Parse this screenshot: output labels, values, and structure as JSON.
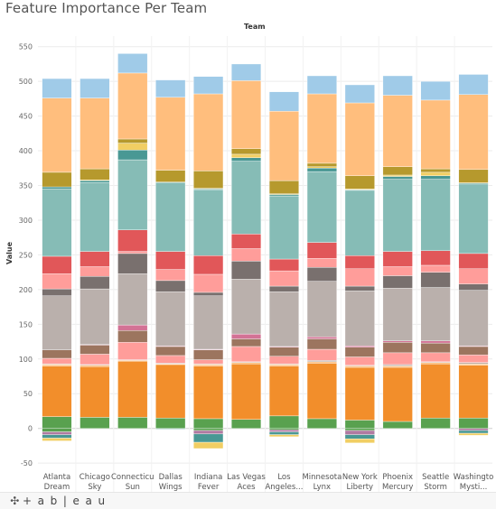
{
  "title": "Feature Importance Per Team",
  "column_header": "Team",
  "footer": {
    "logo_text": "+ a b | e a u",
    "logo_mark": "✣"
  },
  "chart_data": {
    "type": "bar",
    "stacked": true,
    "title": "Feature Importance Per Team",
    "xlabel": "",
    "column_header": "Team",
    "ylabel": "Value",
    "ylim": [
      -55,
      560
    ],
    "yticks": [
      -50,
      0,
      50,
      100,
      150,
      200,
      250,
      300,
      350,
      400,
      450,
      500,
      550
    ],
    "grid": true,
    "categories": [
      [
        "Atlanta",
        "Dream"
      ],
      [
        "Chicago",
        "Sky"
      ],
      [
        "Connecticu",
        "Sun"
      ],
      [
        "Dallas",
        "Wings"
      ],
      [
        "Indiana",
        "Fever"
      ],
      [
        "Las Vegas",
        "Aces"
      ],
      [
        "Los",
        "Angeles..."
      ],
      [
        "Minnesota",
        "Lynx"
      ],
      [
        "New York",
        "Liberty"
      ],
      [
        "Phoenix",
        "Mercury"
      ],
      [
        "Seattle",
        "Storm"
      ],
      [
        "Washingto",
        "Mysti..."
      ]
    ],
    "series": [
      {
        "color": "#59a14f",
        "values": [
          17,
          16,
          16,
          15,
          14,
          13,
          18,
          14,
          12,
          10,
          15,
          15
        ]
      },
      {
        "color": "#f28e2b",
        "values": [
          73,
          73,
          81,
          77,
          76,
          80,
          72,
          80,
          76,
          78,
          78,
          76
        ]
      },
      {
        "color": "#ffbe7d",
        "values": [
          2,
          2,
          1,
          1,
          2,
          2,
          2,
          2,
          2,
          2,
          2,
          2
        ]
      },
      {
        "color": "#bab0ac",
        "values": [
          1,
          1,
          1,
          1,
          1,
          1,
          1,
          2,
          1,
          2,
          1,
          2
        ]
      },
      {
        "color": "#ff9d9a",
        "values": [
          8,
          15,
          25,
          11,
          6,
          22,
          11,
          16,
          12,
          17,
          13,
          11
        ]
      },
      {
        "color": "#9c755f",
        "values": [
          12,
          13,
          17,
          13,
          14,
          11,
          13,
          15,
          14,
          15,
          14,
          12
        ]
      },
      {
        "color": "#d37295",
        "values": [
          0,
          1,
          8,
          1,
          1,
          7,
          1,
          3,
          2,
          2,
          3,
          1
        ]
      },
      {
        "color": "#bab0ac",
        "values": [
          78,
          80,
          74,
          78,
          77,
          79,
          79,
          80,
          79,
          76,
          77,
          80
        ]
      },
      {
        "color": "#79706e",
        "values": [
          10,
          18,
          29,
          16,
          5,
          26,
          8,
          20,
          7,
          18,
          22,
          9
        ]
      },
      {
        "color": "#ff9d9a",
        "values": [
          22,
          14,
          3,
          16,
          26,
          18,
          22,
          13,
          25,
          13,
          10,
          22
        ]
      },
      {
        "color": "#e15759",
        "values": [
          25,
          22,
          31,
          26,
          27,
          21,
          17,
          23,
          19,
          22,
          21,
          22
        ]
      },
      {
        "color": "#86bcb6",
        "values": [
          97,
          99,
          101,
          99,
          95,
          105,
          91,
          102,
          94,
          104,
          103,
          99
        ]
      },
      {
        "color": "#499894",
        "values": [
          3,
          3,
          14,
          1,
          1,
          5,
          2,
          5,
          1,
          4,
          5,
          2
        ]
      },
      {
        "color": "#b07aa1",
        "values": [
          0,
          0,
          0,
          0,
          0,
          0,
          0,
          0,
          0,
          0,
          0,
          0
        ]
      },
      {
        "color": "#f1ce63",
        "values": [
          0,
          1,
          10,
          0,
          1,
          5,
          1,
          2,
          1,
          2,
          5,
          1
        ]
      },
      {
        "color": "#b6992d",
        "values": [
          21,
          16,
          6,
          17,
          25,
          8,
          19,
          5,
          19,
          12,
          5,
          19
        ]
      },
      {
        "color": "#ffbe7d",
        "values": [
          107,
          102,
          95,
          105,
          111,
          98,
          100,
          100,
          105,
          103,
          99,
          108
        ]
      },
      {
        "color": "#a0cbe8",
        "values": [
          28,
          28,
          28,
          25,
          25,
          24,
          28,
          26,
          26,
          28,
          27,
          29
        ]
      },
      {
        "color": "#59a14f",
        "values": [
          -5,
          0,
          0,
          0,
          -3,
          0,
          -2,
          0,
          -3,
          0,
          0,
          0
        ]
      },
      {
        "color": "#b07aa1",
        "values": [
          -4,
          0,
          0,
          0,
          -5,
          0,
          -3,
          0,
          -6,
          0,
          0,
          -3
        ]
      },
      {
        "color": "#499894",
        "values": [
          -5,
          0,
          0,
          -1,
          -12,
          0,
          -4,
          0,
          -6,
          0,
          0,
          -4
        ]
      },
      {
        "color": "#f1ce63",
        "values": [
          -4,
          0,
          0,
          0,
          -9,
          0,
          -3,
          0,
          -6,
          0,
          0,
          -3
        ]
      }
    ]
  }
}
